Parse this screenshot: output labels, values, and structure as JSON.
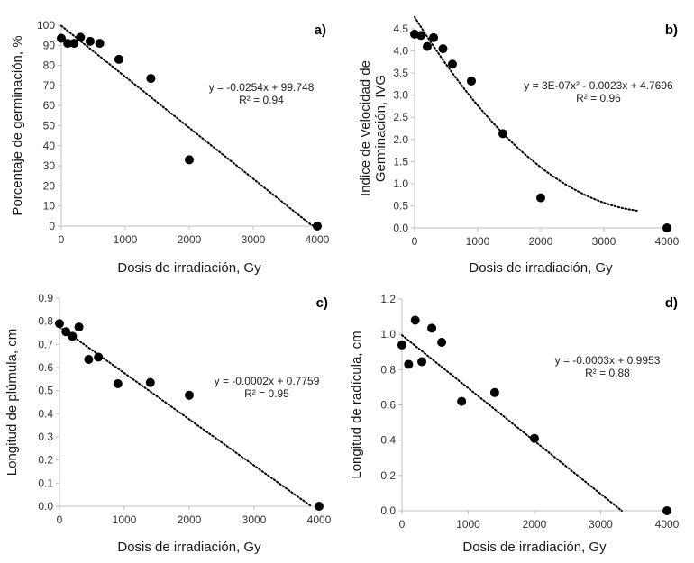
{
  "colors": {
    "marker": "#000000",
    "trendline": "#000000",
    "axis": "#bfbfbf",
    "text": "#333333"
  },
  "chart_data": [
    {
      "type": "scatter",
      "panel_label": "a)",
      "xlabel": "Dosis de irradiación, Gy",
      "ylabel": "Porcentaje de germinación, %",
      "xlim": [
        0,
        4000
      ],
      "ylim": [
        0,
        100
      ],
      "xticks": [
        0,
        1000,
        2000,
        3000,
        4000
      ],
      "yticks": [
        0,
        10,
        20,
        30,
        40,
        50,
        60,
        70,
        80,
        90,
        100
      ],
      "ytick_decimals": 0,
      "points": [
        [
          0,
          93.5
        ],
        [
          100,
          91
        ],
        [
          200,
          91
        ],
        [
          300,
          94
        ],
        [
          450,
          92
        ],
        [
          600,
          91
        ],
        [
          900,
          83
        ],
        [
          1400,
          73.5
        ],
        [
          2000,
          33
        ],
        [
          4000,
          0
        ]
      ],
      "trend": {
        "kind": "linear",
        "coef": [
          -0.0254,
          99.748
        ],
        "range": [
          0,
          4000
        ]
      },
      "equation": "y = -0.0254x + 99.748",
      "r2": "R² = 0.94"
    },
    {
      "type": "scatter",
      "panel_label": "b)",
      "xlabel": "Dosis de irradiación, Gy",
      "ylabel_lines": [
        "Indice de Velocidad de",
        "Germinación, IVG"
      ],
      "xlim": [
        0,
        4000
      ],
      "ylim": [
        0,
        4.5
      ],
      "xticks": [
        0,
        1000,
        2000,
        3000,
        4000
      ],
      "yticks": [
        0,
        0.5,
        1.0,
        1.5,
        2.0,
        2.5,
        3.0,
        3.5,
        4.0,
        4.5
      ],
      "ytick_decimals": 1,
      "points": [
        [
          0,
          4.38
        ],
        [
          100,
          4.35
        ],
        [
          200,
          4.1
        ],
        [
          300,
          4.3
        ],
        [
          450,
          4.05
        ],
        [
          600,
          3.7
        ],
        [
          900,
          3.32
        ],
        [
          1400,
          2.13
        ],
        [
          2000,
          0.68
        ],
        [
          4000,
          0
        ]
      ],
      "trend": {
        "kind": "quadratic",
        "coef": [
          3e-07,
          -0.0023,
          4.7696
        ],
        "range": [
          0,
          3550
        ]
      },
      "equation": "y = 3E-07x² - 0.0023x + 4.7696",
      "r2": "R² = 0.96"
    },
    {
      "type": "scatter",
      "panel_label": "c)",
      "xlabel": "Dosis de irradiación, Gy",
      "ylabel": "Longitud de plúmula, cm",
      "xlim": [
        0,
        4000
      ],
      "ylim": [
        0,
        0.9
      ],
      "xticks": [
        0,
        1000,
        2000,
        3000,
        4000
      ],
      "yticks": [
        0,
        0.1,
        0.2,
        0.3,
        0.4,
        0.5,
        0.6,
        0.7,
        0.8,
        0.9
      ],
      "ytick_decimals": 1,
      "points": [
        [
          0,
          0.79
        ],
        [
          100,
          0.755
        ],
        [
          200,
          0.735
        ],
        [
          300,
          0.775
        ],
        [
          450,
          0.635
        ],
        [
          600,
          0.645
        ],
        [
          900,
          0.53
        ],
        [
          1400,
          0.535
        ],
        [
          2000,
          0.48
        ],
        [
          4000,
          0
        ]
      ],
      "trend": {
        "kind": "linear",
        "coef": [
          -0.0002,
          0.7759
        ],
        "range": [
          0,
          3880
        ]
      },
      "equation": "y = -0.0002x + 0.7759",
      "r2": "R² = 0.95"
    },
    {
      "type": "scatter",
      "panel_label": "d)",
      "xlabel": "Dosis de irradiación, Gy",
      "ylabel": "Longitud de radícula, cm",
      "xlim": [
        0,
        4000
      ],
      "ylim": [
        0,
        1.2
      ],
      "xticks": [
        0,
        1000,
        2000,
        3000,
        4000
      ],
      "yticks": [
        0,
        0.2,
        0.4,
        0.6,
        0.8,
        1.0,
        1.2
      ],
      "ytick_decimals": 1,
      "points": [
        [
          0,
          0.94
        ],
        [
          100,
          0.83
        ],
        [
          200,
          1.08
        ],
        [
          300,
          0.845
        ],
        [
          450,
          1.035
        ],
        [
          600,
          0.955
        ],
        [
          900,
          0.62
        ],
        [
          1400,
          0.67
        ],
        [
          2000,
          0.41
        ],
        [
          4000,
          0
        ]
      ],
      "trend": {
        "kind": "linear",
        "coef": [
          -0.0003,
          0.9953
        ],
        "range": [
          0,
          3318
        ]
      },
      "equation": "y = -0.0003x + 0.9953",
      "r2": "R² = 0.88"
    }
  ]
}
